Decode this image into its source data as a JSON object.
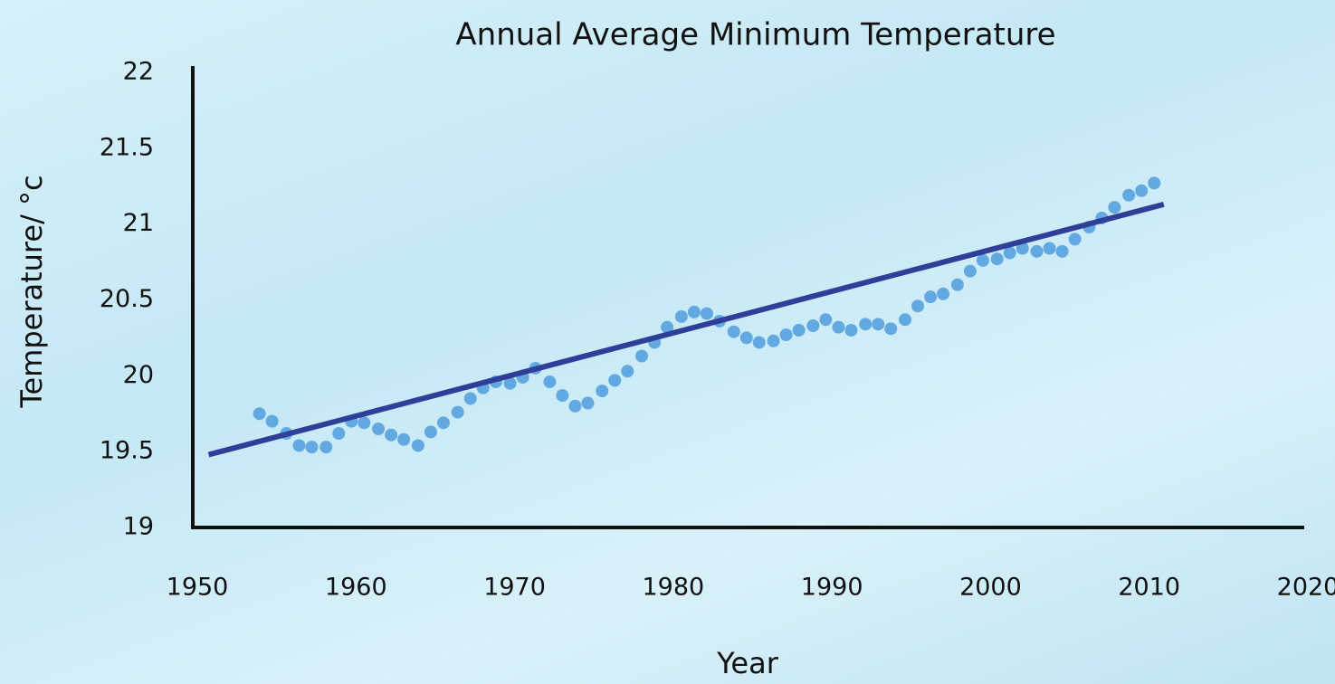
{
  "chart_data": {
    "type": "scatter",
    "title": "Annual Average Minimum Temperature",
    "x_label": "Year",
    "y_label": "Temperature/ °c",
    "xlim": [
      1950,
      2020
    ],
    "xticks": [
      1950,
      1960,
      1970,
      1980,
      1990,
      2000,
      2010,
      2020
    ],
    "ylim": [
      19,
      22
    ],
    "yticks": [
      19,
      19.5,
      20,
      20.5,
      21,
      21.5,
      22
    ],
    "grid": false,
    "series": [
      {
        "type": "scatter",
        "color": "#62a9e2",
        "x": [
          1954.2,
          1955.0,
          1955.9,
          1956.7,
          1957.5,
          1958.4,
          1959.2,
          1960.0,
          1960.8,
          1961.7,
          1962.5,
          1963.3,
          1964.2,
          1965.0,
          1965.8,
          1966.7,
          1967.5,
          1968.3,
          1969.1,
          1970.0,
          1970.8,
          1971.6,
          1972.5,
          1973.3,
          1974.1,
          1974.9,
          1975.8,
          1976.6,
          1977.4,
          1978.3,
          1979.1,
          1979.9,
          1980.8,
          1981.6,
          1982.4,
          1983.2,
          1984.1,
          1984.9,
          1985.7,
          1986.6,
          1987.4,
          1988.2,
          1989.1,
          1989.9,
          1990.7,
          1991.5,
          1992.4,
          1993.2,
          1994.0,
          1994.9,
          1995.7,
          1996.5,
          1997.3,
          1998.2,
          1999.0,
          1999.8,
          2000.7,
          2001.5,
          2002.3,
          2003.2,
          2004.0,
          2004.8,
          2005.6,
          2006.5,
          2007.3,
          2008.1,
          2009.0,
          2009.8,
          2010.6
        ],
        "values": [
          19.75,
          19.7,
          19.62,
          19.54,
          19.53,
          19.53,
          19.62,
          19.7,
          19.69,
          19.65,
          19.61,
          19.58,
          19.54,
          19.63,
          19.69,
          19.76,
          19.85,
          19.92,
          19.96,
          19.95,
          19.99,
          20.05,
          19.96,
          19.87,
          19.8,
          19.82,
          19.9,
          19.97,
          20.03,
          20.13,
          20.22,
          20.32,
          20.39,
          20.42,
          20.41,
          20.36,
          20.29,
          20.25,
          20.22,
          20.23,
          20.27,
          20.3,
          20.33,
          20.37,
          20.32,
          20.3,
          20.34,
          20.34,
          20.31,
          20.37,
          20.46,
          20.52,
          20.54,
          20.6,
          20.69,
          20.76,
          20.77,
          20.81,
          20.84,
          20.82,
          20.84,
          20.82,
          20.9,
          20.98,
          21.04,
          21.11,
          21.19,
          21.22,
          21.27
        ]
      },
      {
        "type": "line",
        "color": "#2f3f99",
        "x": [
          1951,
          2011.2
        ],
        "values": [
          19.48,
          21.13
        ]
      }
    ]
  }
}
